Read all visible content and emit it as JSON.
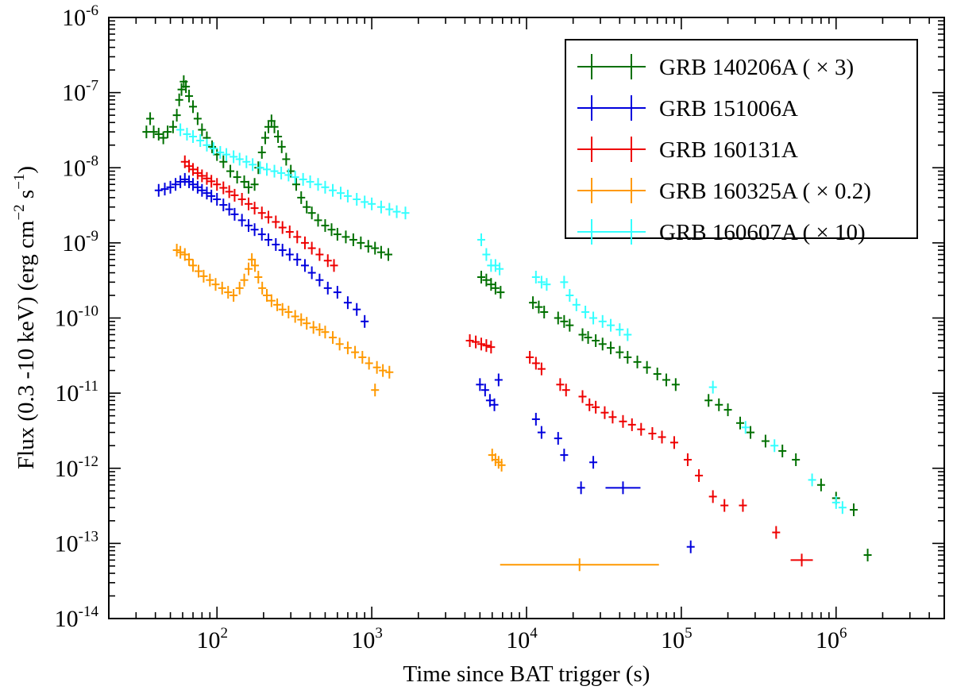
{
  "chart_data": {
    "type": "scatter",
    "scale": {
      "x": "log",
      "y": "log"
    },
    "xlabel": "Time since BAT trigger (s)",
    "ylabel_parts": {
      "prefix": "Flux (0.3 -10 keV) (erg cm",
      "exp1": "−2",
      "mid": " s",
      "exp2": "−1",
      "suffix": ")"
    },
    "xlim": [
      20,
      5000000
    ],
    "ylim": [
      1e-14,
      1e-06
    ],
    "x_ticks": [
      {
        "value": 100,
        "base": "10",
        "exp": "2"
      },
      {
        "value": 1000,
        "base": "10",
        "exp": "3"
      },
      {
        "value": 10000,
        "base": "10",
        "exp": "4"
      },
      {
        "value": 100000,
        "base": "10",
        "exp": "5"
      },
      {
        "value": 1000000,
        "base": "10",
        "exp": "6"
      }
    ],
    "y_ticks": [
      {
        "value": 1e-06,
        "base": "10",
        "exp": "-6"
      },
      {
        "value": 1e-07,
        "base": "10",
        "exp": "-7"
      },
      {
        "value": 1e-08,
        "base": "10",
        "exp": "-8"
      },
      {
        "value": 1e-09,
        "base": "10",
        "exp": "-9"
      },
      {
        "value": 1e-10,
        "base": "10",
        "exp": "-10"
      },
      {
        "value": 1e-11,
        "base": "10",
        "exp": "-11"
      },
      {
        "value": 1e-12,
        "base": "10",
        "exp": "-12"
      },
      {
        "value": 1e-13,
        "base": "10",
        "exp": "-13"
      },
      {
        "value": 1e-14,
        "base": "10",
        "exp": "-14"
      }
    ],
    "legend_position": "top-right",
    "series": [
      {
        "name": "GRB 140206A",
        "factor": "( × 3)",
        "color": "#007000",
        "points": [
          [
            35,
            3e-08
          ],
          [
            37,
            4.5e-08
          ],
          [
            39,
            3e-08
          ],
          [
            42,
            2.8e-08
          ],
          [
            45,
            2.5e-08
          ],
          [
            48,
            3e-08
          ],
          [
            52,
            3.5e-08
          ],
          [
            55,
            5e-08
          ],
          [
            57,
            8e-08
          ],
          [
            59,
            1.1e-07
          ],
          [
            61,
            1.4e-07
          ],
          [
            63,
            1.2e-07
          ],
          [
            66,
            9e-08
          ],
          [
            70,
            6.5e-08
          ],
          [
            75,
            4.5e-08
          ],
          [
            80,
            3.2e-08
          ],
          [
            86,
            2.5e-08
          ],
          [
            93,
            1.9e-08
          ],
          [
            100,
            1.5e-08
          ],
          [
            110,
            1.2e-08
          ],
          [
            122,
            9e-09
          ],
          [
            135,
            7.5e-09
          ],
          [
            150,
            6.5e-09
          ],
          [
            160,
            5.5e-09
          ],
          [
            175,
            6e-09
          ],
          [
            185,
            1e-08
          ],
          [
            195,
            1.6e-08
          ],
          [
            205,
            2.5e-08
          ],
          [
            215,
            3.5e-08
          ],
          [
            225,
            4.2e-08
          ],
          [
            235,
            3.5e-08
          ],
          [
            248,
            2.6e-08
          ],
          [
            262,
            1.9e-08
          ],
          [
            280,
            1.3e-08
          ],
          [
            300,
            9e-09
          ],
          [
            325,
            6e-09
          ],
          [
            350,
            4e-09
          ],
          [
            380,
            3e-09
          ],
          [
            410,
            2.5e-09
          ],
          [
            450,
            2e-09
          ],
          [
            500,
            1.7e-09
          ],
          [
            550,
            1.5e-09
          ],
          [
            600,
            1.3e-09
          ],
          [
            680,
            1.2e-09
          ],
          [
            760,
            1.1e-09
          ],
          [
            850,
            1e-09
          ],
          [
            950,
            9e-10
          ],
          [
            1050,
            8.5e-10
          ],
          [
            1150,
            7.5e-10
          ],
          [
            1280,
            7e-10
          ],
          [
            5100,
            3.5e-10
          ],
          [
            5500,
            3.2e-10
          ],
          [
            5900,
            2.8e-10
          ],
          [
            6300,
            2.5e-10
          ],
          [
            6800,
            2.2e-10
          ],
          [
            11000,
            1.6e-10
          ],
          [
            12000,
            1.4e-10
          ],
          [
            13000,
            1.2e-10
          ],
          [
            16000,
            1e-10
          ],
          [
            17500,
            9e-11
          ],
          [
            19000,
            8e-11
          ],
          [
            23000,
            6e-11
          ],
          [
            25000,
            5.5e-11
          ],
          [
            28000,
            5e-11
          ],
          [
            31000,
            4.5e-11
          ],
          [
            35000,
            4e-11
          ],
          [
            40000,
            3.5e-11
          ],
          [
            45000,
            3e-11
          ],
          [
            52000,
            2.6e-11
          ],
          [
            60000,
            2.2e-11
          ],
          [
            70000,
            1.8e-11
          ],
          [
            80000,
            1.5e-11
          ],
          [
            92000,
            1.3e-11
          ],
          [
            150000,
            8e-12
          ],
          [
            175000,
            7e-12
          ],
          [
            200000,
            6e-12
          ],
          [
            240000,
            4e-12
          ],
          [
            280000,
            3e-12
          ],
          [
            350000,
            2.3e-12
          ],
          [
            450000,
            1.7e-12
          ],
          [
            550000,
            1.3e-12
          ],
          [
            800000,
            6e-13
          ],
          [
            1000000,
            4e-13
          ],
          [
            1300000,
            2.8e-13
          ],
          [
            1600000,
            7e-14
          ]
        ]
      },
      {
        "name": "GRB 151006A",
        "factor": "",
        "color": "#0000dd",
        "points": [
          [
            42,
            5e-09
          ],
          [
            46,
            5.2e-09
          ],
          [
            50,
            5.5e-09
          ],
          [
            54,
            6e-09
          ],
          [
            58,
            6.5e-09
          ],
          [
            62,
            7e-09
          ],
          [
            66,
            6.5e-09
          ],
          [
            70,
            6e-09
          ],
          [
            75,
            5.5e-09
          ],
          [
            80,
            5e-09
          ],
          [
            86,
            4.6e-09
          ],
          [
            92,
            4.2e-09
          ],
          [
            100,
            3.8e-09
          ],
          [
            110,
            3.2e-09
          ],
          [
            120,
            2.8e-09
          ],
          [
            130,
            2.4e-09
          ],
          [
            145,
            2e-09
          ],
          [
            160,
            1.7e-09
          ],
          [
            175,
            1.5e-09
          ],
          [
            195,
            1.3e-09
          ],
          [
            215,
            1.1e-09
          ],
          [
            240,
            9.5e-10
          ],
          [
            265,
            8e-10
          ],
          [
            295,
            7e-10
          ],
          [
            330,
            6e-10
          ],
          [
            370,
            5e-10
          ],
          [
            410,
            4e-10
          ],
          [
            460,
            3.2e-10
          ],
          [
            520,
            2.5e-10
          ],
          [
            600,
            2.2e-10
          ],
          [
            700,
            1.6e-10
          ],
          [
            800,
            1.3e-10
          ],
          [
            900,
            9e-11
          ],
          [
            5000,
            1.3e-11
          ],
          [
            5400,
            1.1e-11
          ],
          [
            5800,
            8e-12
          ],
          [
            6200,
            7e-12
          ],
          [
            6600,
            1.5e-11
          ],
          [
            11500,
            4.5e-12
          ],
          [
            12500,
            3e-12
          ],
          [
            16000,
            2.5e-12
          ],
          [
            17500,
            1.5e-12
          ],
          [
            27000,
            1.2e-12
          ],
          [
            22500,
            5.5e-13
          ],
          [
            42000,
            5.5e-13
          ],
          [
            115000,
            9e-14
          ]
        ]
      },
      {
        "name": "GRB 160131A",
        "factor": "",
        "color": "#ee0000",
        "points": [
          [
            62,
            1.2e-08
          ],
          [
            66,
            1.05e-08
          ],
          [
            70,
            9.5e-09
          ],
          [
            75,
            8.5e-09
          ],
          [
            80,
            7.8e-09
          ],
          [
            86,
            7.2e-09
          ],
          [
            92,
            6.6e-09
          ],
          [
            100,
            6e-09
          ],
          [
            110,
            5.4e-09
          ],
          [
            120,
            4.8e-09
          ],
          [
            130,
            4.3e-09
          ],
          [
            145,
            3.8e-09
          ],
          [
            160,
            3.3e-09
          ],
          [
            175,
            2.9e-09
          ],
          [
            195,
            2.5e-09
          ],
          [
            215,
            2.2e-09
          ],
          [
            240,
            1.9e-09
          ],
          [
            265,
            1.6e-09
          ],
          [
            295,
            1.4e-09
          ],
          [
            330,
            1.2e-09
          ],
          [
            370,
            1e-09
          ],
          [
            410,
            8.5e-10
          ],
          [
            460,
            7e-10
          ],
          [
            520,
            5.8e-10
          ],
          [
            570,
            5e-10
          ],
          [
            4300,
            5e-11
          ],
          [
            4700,
            4.8e-11
          ],
          [
            5100,
            4.5e-11
          ],
          [
            5500,
            4.3e-11
          ],
          [
            5900,
            4.1e-11
          ],
          [
            10500,
            3e-11
          ],
          [
            11500,
            2.5e-11
          ],
          [
            12500,
            2.1e-11
          ],
          [
            16500,
            1.3e-11
          ],
          [
            18000,
            1.1e-11
          ],
          [
            23000,
            9e-12
          ],
          [
            25500,
            7e-12
          ],
          [
            28000,
            6.5e-12
          ],
          [
            32000,
            5.5e-12
          ],
          [
            36000,
            4.8e-12
          ],
          [
            42000,
            4.2e-12
          ],
          [
            48000,
            3.8e-12
          ],
          [
            55000,
            3.3e-12
          ],
          [
            65000,
            2.9e-12
          ],
          [
            75000,
            2.6e-12
          ],
          [
            90000,
            2.2e-12
          ],
          [
            110000,
            1.3e-12
          ],
          [
            130000,
            8e-13
          ],
          [
            160000,
            4.2e-13
          ],
          [
            190000,
            3.2e-13
          ],
          [
            250000,
            3.2e-13
          ],
          [
            410000,
            1.4e-13
          ],
          [
            600000,
            6e-14
          ]
        ]
      },
      {
        "name": "GRB 160325A",
        "factor": "( × 0.2)",
        "color": "#ff9900",
        "points": [
          [
            55,
            8e-10
          ],
          [
            58,
            7.5e-10
          ],
          [
            62,
            7e-10
          ],
          [
            66,
            6e-10
          ],
          [
            70,
            5e-10
          ],
          [
            76,
            4.2e-10
          ],
          [
            82,
            3.6e-10
          ],
          [
            90,
            3.2e-10
          ],
          [
            98,
            2.8e-10
          ],
          [
            108,
            2.5e-10
          ],
          [
            118,
            2.2e-10
          ],
          [
            128,
            2e-10
          ],
          [
            140,
            2.5e-10
          ],
          [
            150,
            3.2e-10
          ],
          [
            160,
            4.5e-10
          ],
          [
            168,
            6e-10
          ],
          [
            176,
            5e-10
          ],
          [
            185,
            3.5e-10
          ],
          [
            196,
            2.5e-10
          ],
          [
            210,
            2e-10
          ],
          [
            225,
            1.7e-10
          ],
          [
            245,
            1.5e-10
          ],
          [
            265,
            1.3e-10
          ],
          [
            290,
            1.2e-10
          ],
          [
            320,
            1.05e-10
          ],
          [
            350,
            9.5e-11
          ],
          [
            380,
            8.5e-11
          ],
          [
            420,
            7.5e-11
          ],
          [
            460,
            7e-11
          ],
          [
            500,
            6.5e-11
          ],
          [
            560,
            5.5e-11
          ],
          [
            620,
            4.5e-11
          ],
          [
            700,
            4e-11
          ],
          [
            780,
            3.5e-11
          ],
          [
            870,
            3e-11
          ],
          [
            960,
            2.5e-11
          ],
          [
            1080,
            2.2e-11
          ],
          [
            1180,
            2e-11
          ],
          [
            1300,
            1.9e-11
          ],
          [
            1050,
            1.1e-11
          ],
          [
            6000,
            1.5e-12
          ],
          [
            6300,
            1.3e-12
          ],
          [
            6600,
            1.2e-12
          ],
          [
            6900,
            1.1e-12
          ],
          [
            22000,
            5.2e-14
          ]
        ]
      },
      {
        "name": "GRB 160607A",
        "factor": "( × 10)",
        "color": "#33ffff",
        "points": [
          [
            58,
            3.2e-08
          ],
          [
            64,
            2.8e-08
          ],
          [
            70,
            2.6e-08
          ],
          [
            78,
            2.3e-08
          ],
          [
            86,
            2e-08
          ],
          [
            95,
            1.8e-08
          ],
          [
            105,
            1.6e-08
          ],
          [
            115,
            1.5e-08
          ],
          [
            128,
            1.4e-08
          ],
          [
            140,
            1.3e-08
          ],
          [
            155,
            1.2e-08
          ],
          [
            170,
            1.1e-08
          ],
          [
            190,
            1e-08
          ],
          [
            210,
            9.5e-09
          ],
          [
            235,
            9e-09
          ],
          [
            260,
            8.5e-09
          ],
          [
            290,
            8e-09
          ],
          [
            320,
            7.5e-09
          ],
          [
            360,
            7e-09
          ],
          [
            400,
            6.5e-09
          ],
          [
            450,
            6e-09
          ],
          [
            500,
            5.5e-09
          ],
          [
            560,
            5e-09
          ],
          [
            630,
            4.6e-09
          ],
          [
            700,
            4.2e-09
          ],
          [
            800,
            3.8e-09
          ],
          [
            900,
            3.5e-09
          ],
          [
            1000,
            3.3e-09
          ],
          [
            1150,
            3e-09
          ],
          [
            1300,
            2.8e-09
          ],
          [
            1450,
            2.6e-09
          ],
          [
            1650,
            2.5e-09
          ],
          [
            5100,
            1.1e-09
          ],
          [
            5500,
            7e-10
          ],
          [
            5900,
            5e-10
          ],
          [
            6300,
            5e-10
          ],
          [
            6700,
            4.5e-10
          ],
          [
            11500,
            3.5e-10
          ],
          [
            12500,
            3e-10
          ],
          [
            13500,
            2.8e-10
          ],
          [
            17500,
            3e-10
          ],
          [
            19000,
            2e-10
          ],
          [
            21000,
            1.5e-10
          ],
          [
            24000,
            1.2e-10
          ],
          [
            27000,
            1e-10
          ],
          [
            31000,
            9e-11
          ],
          [
            35000,
            8e-11
          ],
          [
            40000,
            7e-11
          ],
          [
            45000,
            6e-11
          ],
          [
            160000,
            1.2e-11
          ],
          [
            260000,
            3.5e-12
          ],
          [
            400000,
            2e-12
          ],
          [
            700000,
            7e-13
          ],
          [
            1000000,
            3.5e-13
          ],
          [
            1100000,
            3e-13
          ]
        ]
      }
    ]
  }
}
